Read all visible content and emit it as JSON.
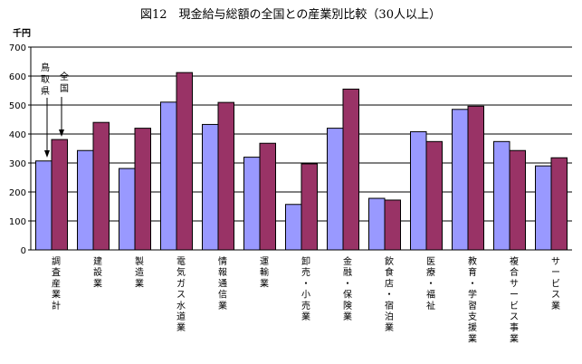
{
  "chart_data": {
    "type": "bar",
    "title": "図12　現金給与総額の全国との産業別比較（30人以上）",
    "y_unit": "千円",
    "ylim": [
      0,
      700
    ],
    "yticks": [
      0,
      100,
      200,
      300,
      400,
      500,
      600,
      700
    ],
    "grid": true,
    "categories": [
      "調査産業計",
      "建設業",
      "製造業",
      "電気ガス水道業",
      "情報通信業",
      "運輸業",
      "卸売・小売業",
      "金融・保険業",
      "飲食店・宿泊業",
      "医療・福祉",
      "教育・学習支援業",
      "複合サービス事業",
      "サービス業"
    ],
    "series": [
      {
        "name": "鳥取県",
        "color": "#9999ff",
        "values": [
          307,
          343,
          281,
          510,
          433,
          320,
          157,
          420,
          178,
          408,
          485,
          374,
          290
        ]
      },
      {
        "name": "全国",
        "color": "#993366",
        "values": [
          381,
          440,
          420,
          612,
          509,
          368,
          297,
          555,
          172,
          374,
          496,
          343,
          318
        ]
      }
    ],
    "annotations": [
      "鳥取県",
      "全国"
    ]
  }
}
